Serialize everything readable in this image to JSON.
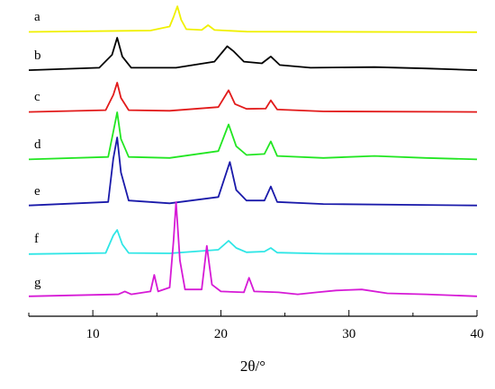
{
  "chart_data": {
    "type": "line",
    "xlabel": "2θ/°",
    "ylabel": "",
    "xlim": [
      5,
      40
    ],
    "xticks": [
      10,
      20,
      30,
      40
    ],
    "stacked": true,
    "series": [
      {
        "name": "a",
        "color": "#f0f000",
        "points": [
          [
            5,
            0.05
          ],
          [
            14.5,
            0.1
          ],
          [
            16,
            0.25
          ],
          [
            16.3,
            0.6
          ],
          [
            16.6,
            1.0
          ],
          [
            16.9,
            0.5
          ],
          [
            17.3,
            0.15
          ],
          [
            18.5,
            0.12
          ],
          [
            19.0,
            0.3
          ],
          [
            19.5,
            0.12
          ],
          [
            22,
            0.06
          ],
          [
            40,
            0.04
          ]
        ]
      },
      {
        "name": "b",
        "color": "#000000",
        "points": [
          [
            5,
            0.05
          ],
          [
            10.5,
            0.12
          ],
          [
            11.5,
            0.5
          ],
          [
            11.9,
            1.0
          ],
          [
            12.3,
            0.45
          ],
          [
            13.0,
            0.12
          ],
          [
            16.5,
            0.12
          ],
          [
            19.5,
            0.3
          ],
          [
            20.5,
            0.75
          ],
          [
            21.0,
            0.6
          ],
          [
            21.8,
            0.3
          ],
          [
            23.2,
            0.25
          ],
          [
            23.9,
            0.45
          ],
          [
            24.6,
            0.2
          ],
          [
            27,
            0.12
          ],
          [
            32,
            0.14
          ],
          [
            36,
            0.1
          ],
          [
            40,
            0.05
          ]
        ]
      },
      {
        "name": "c",
        "color": "#e21a1a",
        "points": [
          [
            5,
            0.04
          ],
          [
            11.0,
            0.1
          ],
          [
            11.6,
            0.6
          ],
          [
            11.9,
            1.0
          ],
          [
            12.2,
            0.5
          ],
          [
            12.8,
            0.1
          ],
          [
            16,
            0.08
          ],
          [
            19.8,
            0.2
          ],
          [
            20.6,
            0.75
          ],
          [
            21.1,
            0.3
          ],
          [
            22,
            0.14
          ],
          [
            23.5,
            0.15
          ],
          [
            23.9,
            0.42
          ],
          [
            24.4,
            0.12
          ],
          [
            28,
            0.06
          ],
          [
            40,
            0.04
          ]
        ]
      },
      {
        "name": "d",
        "color": "#22e622",
        "points": [
          [
            5,
            0.03
          ],
          [
            11.2,
            0.08
          ],
          [
            11.6,
            0.6
          ],
          [
            11.9,
            1.0
          ],
          [
            12.2,
            0.45
          ],
          [
            12.8,
            0.08
          ],
          [
            16,
            0.06
          ],
          [
            19.8,
            0.2
          ],
          [
            20.6,
            0.75
          ],
          [
            21.2,
            0.3
          ],
          [
            22,
            0.12
          ],
          [
            23.4,
            0.14
          ],
          [
            23.9,
            0.4
          ],
          [
            24.4,
            0.1
          ],
          [
            28,
            0.06
          ],
          [
            32,
            0.1
          ],
          [
            36,
            0.06
          ],
          [
            40,
            0.03
          ]
        ]
      },
      {
        "name": "e",
        "color": "#1a1aaa",
        "points": [
          [
            5,
            0.03
          ],
          [
            11.2,
            0.08
          ],
          [
            11.6,
            0.7
          ],
          [
            11.9,
            1.0
          ],
          [
            12.2,
            0.5
          ],
          [
            12.8,
            0.1
          ],
          [
            16,
            0.06
          ],
          [
            19.8,
            0.15
          ],
          [
            20.7,
            0.65
          ],
          [
            21.2,
            0.25
          ],
          [
            22,
            0.1
          ],
          [
            23.4,
            0.1
          ],
          [
            23.9,
            0.3
          ],
          [
            24.4,
            0.08
          ],
          [
            28,
            0.05
          ],
          [
            40,
            0.03
          ]
        ]
      },
      {
        "name": "f",
        "color": "#2ee6e6",
        "points": [
          [
            5,
            0.03
          ],
          [
            11.0,
            0.06
          ],
          [
            11.6,
            0.55
          ],
          [
            11.9,
            0.7
          ],
          [
            12.3,
            0.3
          ],
          [
            12.8,
            0.06
          ],
          [
            16,
            0.05
          ],
          [
            19.8,
            0.15
          ],
          [
            20.6,
            0.4
          ],
          [
            21.2,
            0.2
          ],
          [
            22,
            0.08
          ],
          [
            23.4,
            0.1
          ],
          [
            23.9,
            0.2
          ],
          [
            24.4,
            0.07
          ],
          [
            28,
            0.04
          ],
          [
            40,
            0.03
          ]
        ]
      },
      {
        "name": "g",
        "color": "#d61ad6",
        "points": [
          [
            5,
            0.03
          ],
          [
            12,
            0.05
          ],
          [
            12.5,
            0.08
          ],
          [
            13,
            0.05
          ],
          [
            14.5,
            0.08
          ],
          [
            14.8,
            0.25
          ],
          [
            15.1,
            0.08
          ],
          [
            16.0,
            0.12
          ],
          [
            16.3,
            0.6
          ],
          [
            16.5,
            1.0
          ],
          [
            16.8,
            0.4
          ],
          [
            17.2,
            0.1
          ],
          [
            18.5,
            0.1
          ],
          [
            18.9,
            0.55
          ],
          [
            19.3,
            0.15
          ],
          [
            20,
            0.08
          ],
          [
            21.8,
            0.07
          ],
          [
            22.2,
            0.22
          ],
          [
            22.6,
            0.08
          ],
          [
            24.5,
            0.07
          ],
          [
            26,
            0.05
          ],
          [
            27.5,
            0.07
          ],
          [
            29,
            0.09
          ],
          [
            31,
            0.1
          ],
          [
            33,
            0.06
          ],
          [
            36,
            0.05
          ],
          [
            40,
            0.03
          ]
        ]
      }
    ]
  }
}
